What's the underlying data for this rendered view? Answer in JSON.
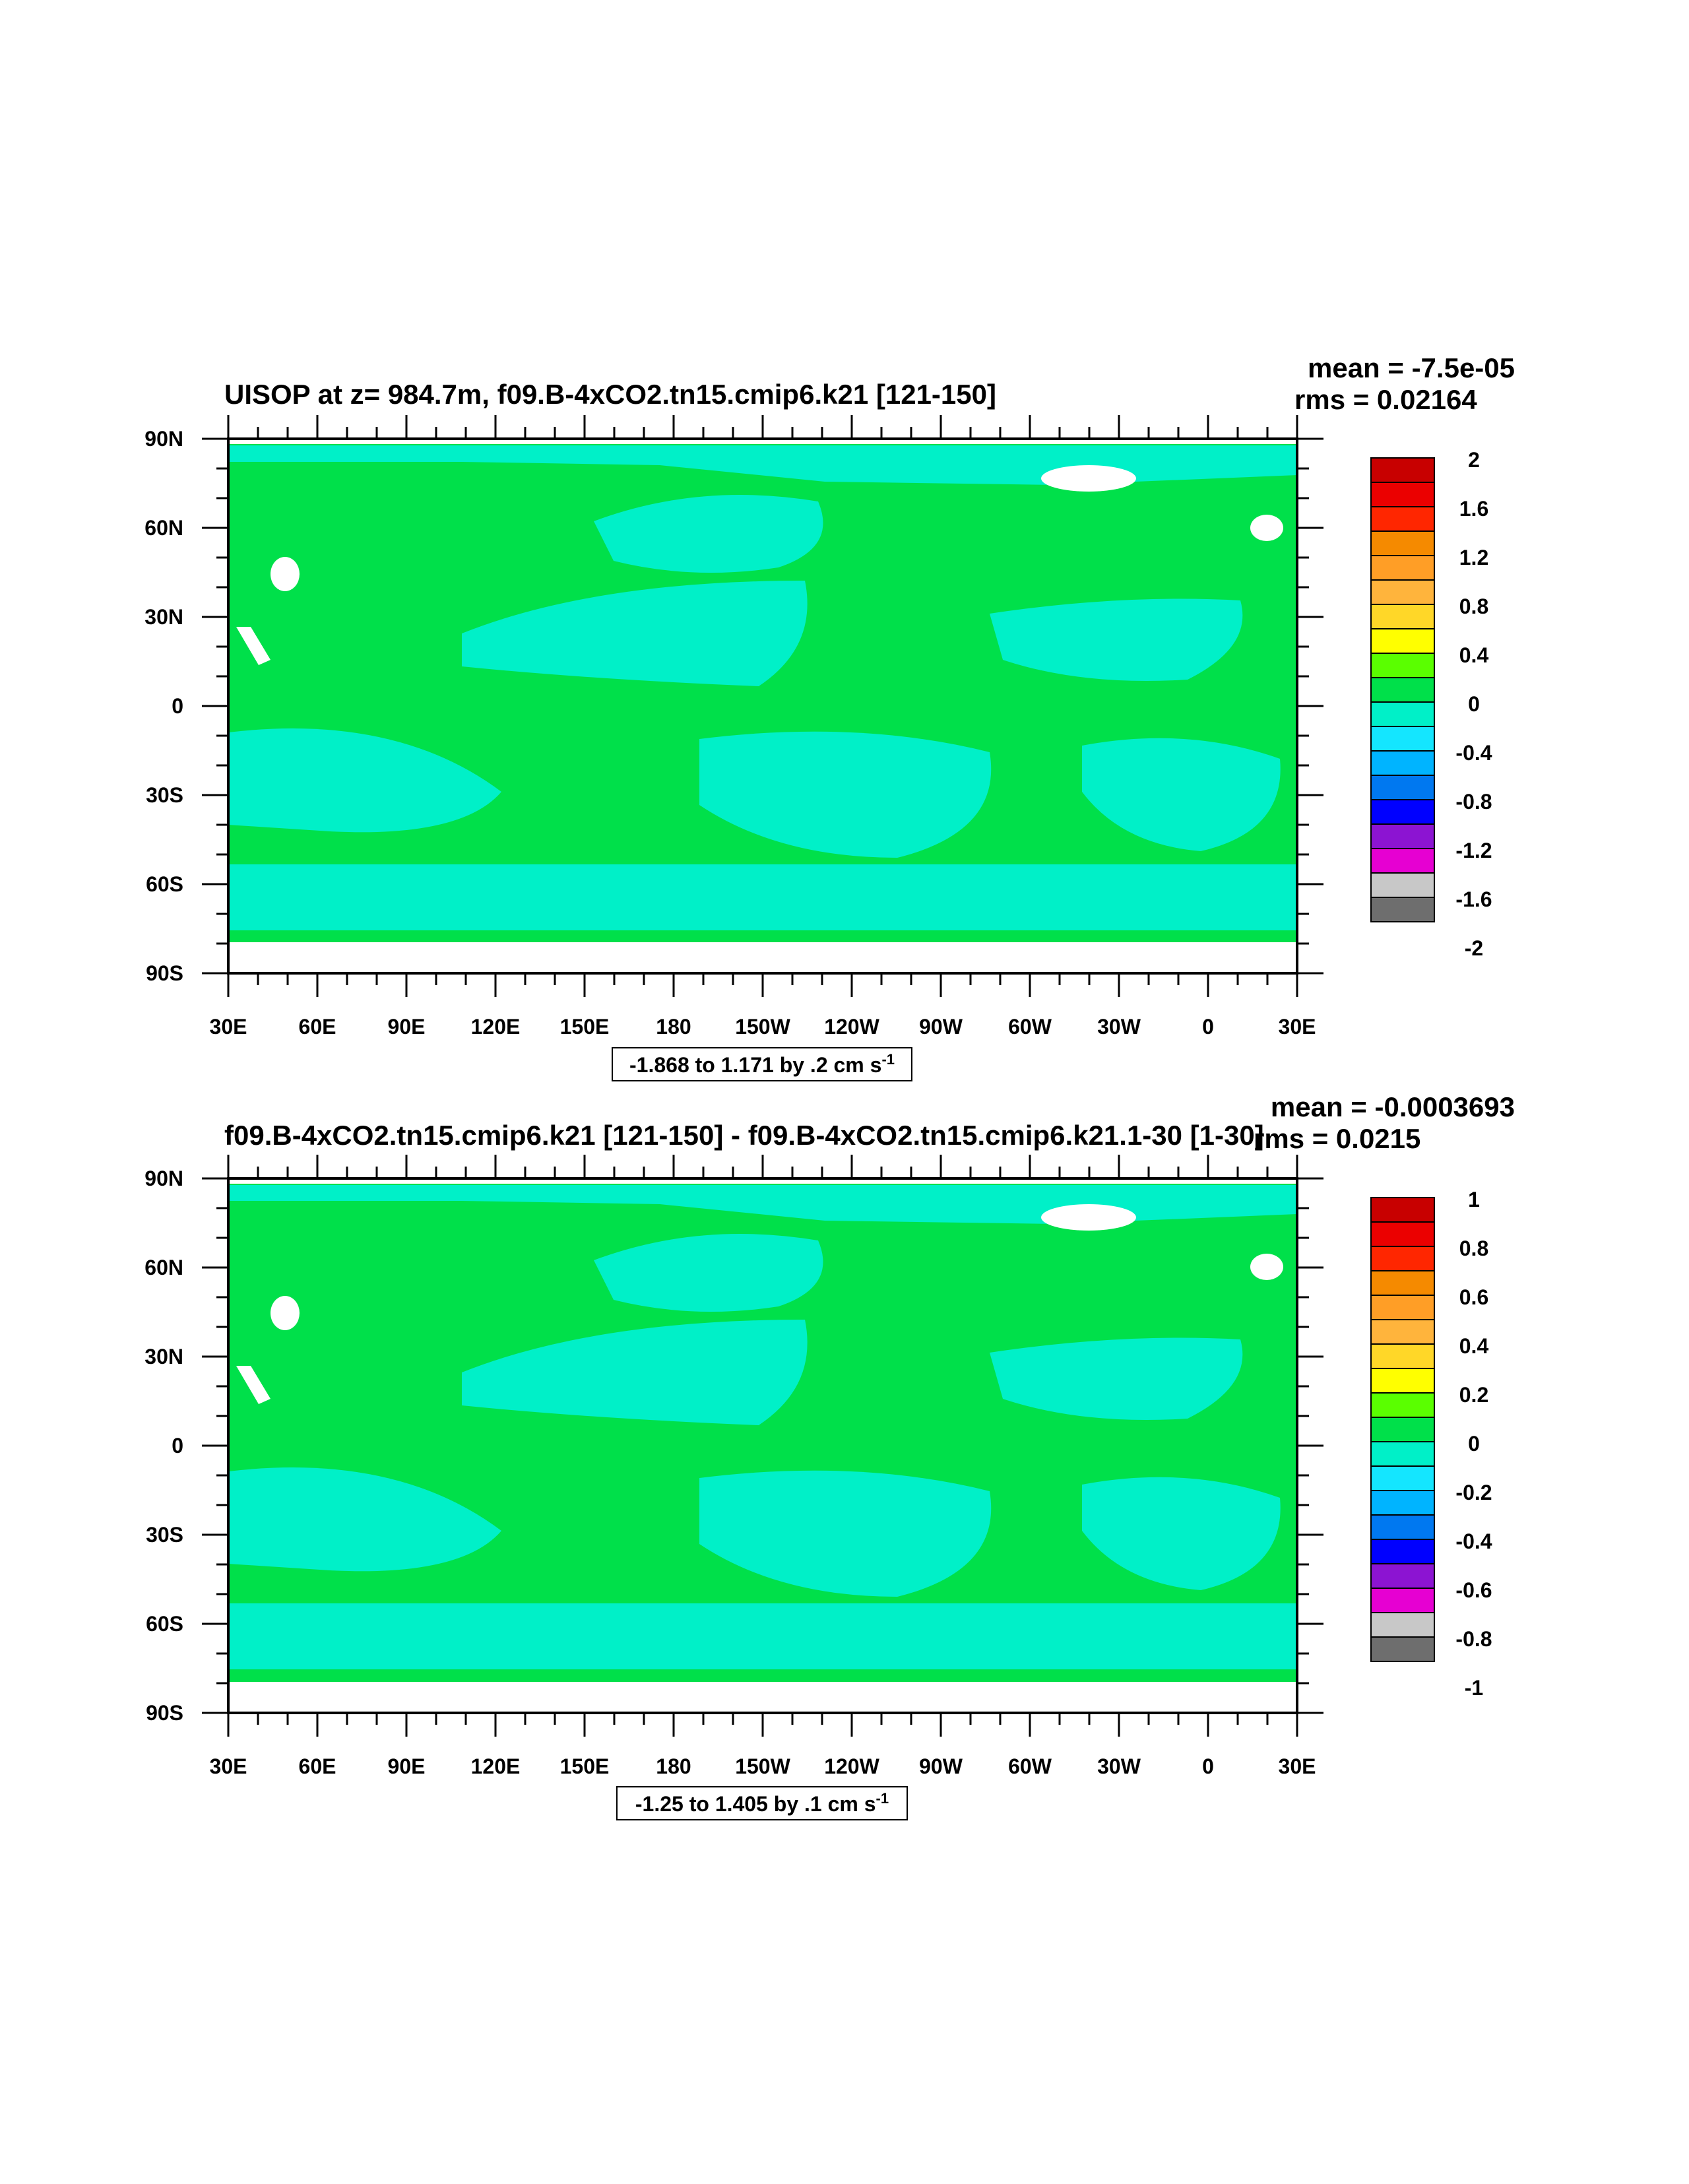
{
  "colors": {
    "land_green": "#00e04a",
    "ocean_cyan": "#00f0c8",
    "missing_white": "#ffffff",
    "frame": "#000000"
  },
  "chart_data": [
    {
      "type": "heatmap",
      "title": "UISOP at z= 984.7m, f09.B-4xCO2.tn15.cmip6.k21 [121-150]",
      "stats": {
        "mean": "mean = -7.5e-05",
        "rms": "rms = 0.02164"
      },
      "x_ticks": [
        "30E",
        "60E",
        "90E",
        "120E",
        "150E",
        "180",
        "150W",
        "120W",
        "90W",
        "60W",
        "30W",
        "0",
        "30E"
      ],
      "y_ticks": [
        "90N",
        "60N",
        "30N",
        "0",
        "30S",
        "60S",
        "90S"
      ],
      "colorbar": {
        "labels": [
          "2",
          "1.6",
          "1.2",
          "0.8",
          "0.4",
          "0",
          "-0.4",
          "-0.8",
          "-1.2",
          "-1.6",
          "-2"
        ],
        "colors": [
          "#c80000",
          "#eb0000",
          "#ff2600",
          "#f58a00",
          "#ff9e26",
          "#ffb43c",
          "#ffd728",
          "#ffff00",
          "#5aff00",
          "#00e04a",
          "#00f0c8",
          "#14e6ff",
          "#00b4ff",
          "#0078f0",
          "#0000ff",
          "#8c14d2",
          "#e600d2",
          "#c8c8c8",
          "#6e6e6e"
        ]
      },
      "range_label": {
        "text": "-1.868 to 1.171 by .2 cm s",
        "sup": "-1"
      }
    },
    {
      "type": "heatmap",
      "title": "f09.B-4xCO2.tn15.cmip6.k21 [121-150] - f09.B-4xCO2.tn15.cmip6.k21.1-30 [1-30]",
      "stats": {
        "mean": "mean = -0.0003693",
        "rms": "rms = 0.0215"
      },
      "x_ticks": [
        "30E",
        "60E",
        "90E",
        "120E",
        "150E",
        "180",
        "150W",
        "120W",
        "90W",
        "60W",
        "30W",
        "0",
        "30E"
      ],
      "y_ticks": [
        "90N",
        "60N",
        "30N",
        "0",
        "30S",
        "60S",
        "90S"
      ],
      "colorbar": {
        "labels": [
          "1",
          "0.8",
          "0.6",
          "0.4",
          "0.2",
          "0",
          "-0.2",
          "-0.4",
          "-0.6",
          "-0.8",
          "-1"
        ],
        "colors": [
          "#c80000",
          "#eb0000",
          "#ff2600",
          "#f58a00",
          "#ff9e26",
          "#ffb43c",
          "#ffd728",
          "#ffff00",
          "#5aff00",
          "#00e04a",
          "#00f0c8",
          "#14e6ff",
          "#00b4ff",
          "#0078f0",
          "#0000ff",
          "#8c14d2",
          "#e600d2",
          "#c8c8c8",
          "#6e6e6e"
        ]
      },
      "range_label": {
        "text": "-1.25 to 1.405 by .1 cm s",
        "sup": "-1"
      }
    }
  ]
}
